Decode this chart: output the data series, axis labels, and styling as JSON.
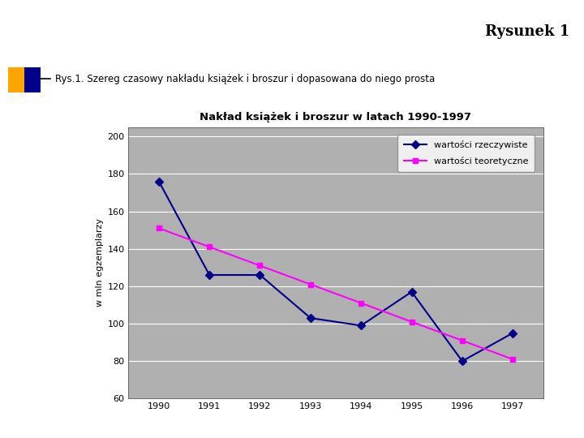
{
  "title": "Nakład książek i broszur w latach 1990-1997",
  "ylabel": "w mln egzemplarzy",
  "years": [
    1990,
    1991,
    1992,
    1993,
    1994,
    1995,
    1996,
    1997
  ],
  "rzeczywiste": [
    176,
    126,
    126,
    103,
    99,
    117,
    80,
    95
  ],
  "teoretyczne": [
    151,
    141,
    131,
    121,
    111,
    101,
    91,
    81
  ],
  "ylim": [
    60,
    205
  ],
  "yticks": [
    60,
    80,
    100,
    120,
    140,
    160,
    180,
    200
  ],
  "color_rzeczywiste": "#00008B",
  "color_teoretyczne": "#FF00FF",
  "legend_rzeczywiste": "wartości rzeczywiste",
  "legend_teoretyczne": "wartości teoretyczne",
  "chart_bg": "#B0B0B0",
  "header_bg": "#F5F0A0",
  "header_text": "Rysunek 1",
  "bullet_text": "Rys.1. Szereg czasowy nakładu książek i broszur i dopasowana do niego prosta",
  "fig_bg": "#FFFFFF",
  "orange_bullet": "#FFA500",
  "blue_bullet": "#00008B"
}
